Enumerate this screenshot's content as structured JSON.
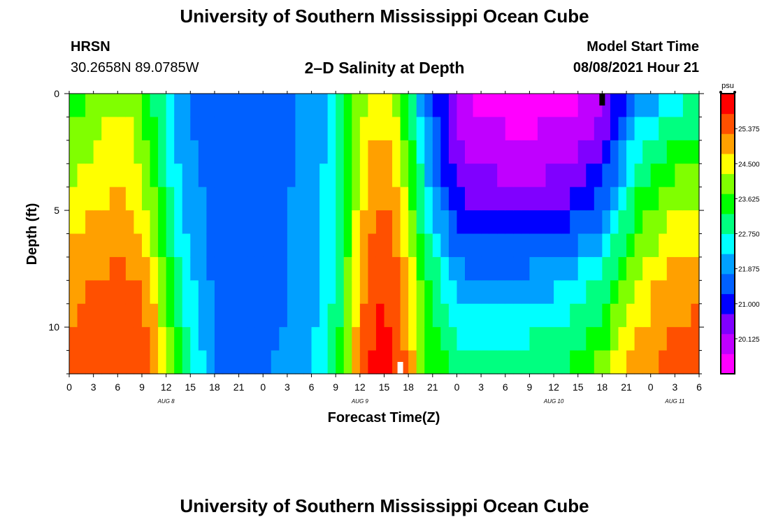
{
  "header": {
    "title": "University of Southern Mississippi Ocean Cube",
    "footer_title": "University of Southern Mississippi Ocean Cube",
    "station": "HRSN",
    "coordinates": "30.2658N  89.0785W",
    "subtitle": "2–D Salinity at Depth",
    "start_label": "Model Start Time",
    "start_time": "08/08/2021 Hour 21"
  },
  "chart_data": {
    "type": "heatmap",
    "title": "2–D Salinity at Depth",
    "xlabel": "Forecast Time(Z)",
    "ylabel": "Depth (ft)",
    "x_tick_labels": [
      "0",
      "3",
      "6",
      "9",
      "12",
      "15",
      "18",
      "21",
      "0",
      "3",
      "6",
      "9",
      "12",
      "15",
      "18",
      "21",
      "0",
      "3",
      "6",
      "9",
      "12",
      "15",
      "18",
      "21",
      "0",
      "3",
      "6"
    ],
    "x_hours": [
      0,
      3,
      6,
      9,
      12,
      15,
      18,
      21,
      24,
      27,
      30,
      33,
      36,
      39,
      42,
      45,
      48,
      51,
      54,
      57,
      60,
      63,
      66,
      69,
      72,
      75,
      78
    ],
    "xlim": [
      0,
      78
    ],
    "date_labels": [
      {
        "label": "AUG 8",
        "hour": 12
      },
      {
        "label": "AUG 9",
        "hour": 36
      },
      {
        "label": "AUG 10",
        "hour": 60
      },
      {
        "label": "AUG 11",
        "hour": 75
      }
    ],
    "y_ticks": [
      0,
      5,
      10
    ],
    "y_tick_labels": [
      "0",
      "5",
      "10"
    ],
    "ylim": [
      0,
      12
    ],
    "y_inverted": true,
    "colorbar": {
      "unit": "psu",
      "range": [
        19.25,
        26.25
      ],
      "tick_values": [
        20.125,
        21.0,
        21.875,
        22.75,
        23.625,
        24.5,
        25.375
      ],
      "tick_labels": [
        "20.125",
        "21.000",
        "21.875",
        "22.750",
        "23.625",
        "24.500",
        "25.375"
      ],
      "colors": [
        "#ff00ff",
        "#c000ff",
        "#8000ff",
        "#0000ff",
        "#0060ff",
        "#00a0ff",
        "#00ffff",
        "#00ff80",
        "#00ff00",
        "#80ff00",
        "#ffff00",
        "#ffa000",
        "#ff5000",
        "#ff0000"
      ]
    },
    "time_rows_hours": [
      0,
      2,
      4,
      6,
      8,
      10,
      12,
      14,
      16,
      18,
      20,
      22,
      24,
      26,
      28,
      30,
      32,
      34,
      36,
      38,
      40,
      42,
      44,
      46,
      48,
      50,
      52,
      54,
      56,
      58,
      60,
      62,
      64,
      66,
      68,
      70,
      72,
      74,
      76,
      78
    ],
    "depth_profiles_ft": [
      0,
      4,
      8,
      12
    ],
    "salinity_profiles": [
      [
        23.4,
        24.2,
        25.0,
        25.5
      ],
      [
        23.7,
        24.5,
        25.2,
        25.6
      ],
      [
        24.0,
        24.6,
        25.3,
        25.7
      ],
      [
        24.1,
        24.7,
        25.4,
        25.8
      ],
      [
        24.0,
        24.6,
        25.3,
        25.7
      ],
      [
        23.3,
        23.9,
        24.9,
        25.5
      ],
      [
        22.5,
        23.0,
        23.6,
        24.4
      ],
      [
        21.8,
        22.2,
        22.6,
        23.2
      ],
      [
        21.6,
        21.8,
        22.1,
        22.6
      ],
      [
        21.4,
        21.5,
        21.6,
        21.8
      ],
      [
        21.3,
        21.3,
        21.4,
        21.6
      ],
      [
        21.4,
        21.4,
        21.4,
        21.6
      ],
      [
        21.5,
        21.5,
        21.5,
        21.7
      ],
      [
        21.6,
        21.6,
        21.6,
        21.8
      ],
      [
        21.7,
        21.8,
        21.9,
        22.0
      ],
      [
        21.9,
        22.0,
        22.1,
        22.2
      ],
      [
        22.2,
        22.4,
        22.5,
        22.6
      ],
      [
        23.0,
        23.2,
        23.4,
        23.6
      ],
      [
        24.0,
        24.5,
        25.0,
        25.3
      ],
      [
        24.5,
        25.2,
        25.7,
        26.0
      ],
      [
        24.3,
        25.0,
        25.6,
        25.8
      ],
      [
        23.0,
        24.0,
        24.8,
        25.2
      ],
      [
        21.8,
        22.5,
        23.4,
        23.9
      ],
      [
        20.9,
        21.5,
        22.8,
        23.5
      ],
      [
        20.0,
        20.8,
        22.0,
        23.2
      ],
      [
        19.6,
        20.5,
        21.8,
        23.1
      ],
      [
        19.5,
        20.4,
        21.9,
        23.0
      ],
      [
        19.4,
        20.3,
        21.8,
        23.0
      ],
      [
        19.4,
        20.3,
        21.9,
        23.2
      ],
      [
        19.4,
        20.3,
        22.0,
        23.3
      ],
      [
        19.5,
        20.4,
        22.1,
        23.3
      ],
      [
        19.5,
        20.5,
        22.3,
        23.4
      ],
      [
        19.7,
        20.8,
        22.6,
        23.6
      ],
      [
        20.0,
        21.2,
        22.9,
        24.0
      ],
      [
        20.8,
        22.0,
        23.5,
        24.6
      ],
      [
        21.8,
        23.0,
        24.2,
        25.0
      ],
      [
        21.9,
        23.4,
        24.6,
        25.2
      ],
      [
        22.3,
        23.8,
        24.9,
        25.5
      ],
      [
        22.6,
        24.0,
        25.0,
        25.6
      ],
      [
        22.6,
        24.0,
        25.1,
        25.6
      ]
    ],
    "markers": [
      {
        "name": "current-time-marker-top",
        "hour": 66,
        "depth_ft": 0,
        "color": "#000000"
      },
      {
        "name": "current-time-marker-bottom",
        "hour": 41,
        "depth_ft": 12,
        "color": "#ffffff"
      }
    ]
  }
}
